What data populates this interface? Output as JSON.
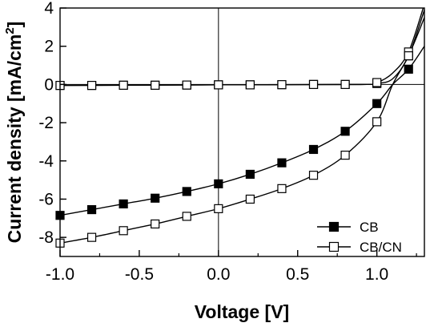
{
  "chart_data": {
    "type": "line",
    "xlabel": "Voltage [V]",
    "ylabel_main": "Current density [mA/cm",
    "ylabel_sup": "2",
    "ylabel_close": "]",
    "xlim": [
      -1.0,
      1.3
    ],
    "ylim": [
      -9,
      4
    ],
    "x_ticks": [
      -1.0,
      -0.5,
      0.0,
      0.5,
      1.0
    ],
    "x_tick_labels": [
      "-1.0",
      "-0.5",
      "0.0",
      "0.5",
      "1.0"
    ],
    "y_ticks": [
      -8,
      -6,
      -4,
      -2,
      0,
      2,
      4
    ],
    "y_tick_labels": [
      "-8",
      "-6",
      "-4",
      "-2",
      "0",
      "2",
      "4"
    ],
    "zero_lines": true,
    "grid": false,
    "legend_position": "bottom-right",
    "series": [
      {
        "name": "CB",
        "marker": "filled-square",
        "curve": [
          [
            -1.0,
            -6.85
          ],
          [
            -0.8,
            -6.55
          ],
          [
            -0.6,
            -6.25
          ],
          [
            -0.4,
            -5.95
          ],
          [
            -0.2,
            -5.6
          ],
          [
            0.0,
            -5.2
          ],
          [
            0.2,
            -4.7
          ],
          [
            0.4,
            -4.1
          ],
          [
            0.6,
            -3.4
          ],
          [
            0.8,
            -2.45
          ],
          [
            1.0,
            -1.0
          ],
          [
            1.1,
            0.0
          ],
          [
            1.2,
            0.8
          ],
          [
            1.3,
            2.0
          ]
        ],
        "x": [
          -1.0,
          -0.8,
          -0.6,
          -0.4,
          -0.2,
          0.0,
          0.2,
          0.4,
          0.6,
          0.8,
          1.0,
          1.2
        ],
        "values": [
          -6.85,
          -6.55,
          -6.25,
          -5.95,
          -5.6,
          -5.2,
          -4.7,
          -4.1,
          -3.4,
          -2.45,
          -1.0,
          0.8
        ],
        "dark_curve": [
          [
            -1.0,
            -0.05
          ],
          [
            0.0,
            -0.02
          ],
          [
            0.9,
            0.0
          ],
          [
            1.0,
            0.05
          ],
          [
            1.1,
            0.3
          ],
          [
            1.2,
            1.5
          ],
          [
            1.3,
            3.9
          ]
        ],
        "dark_x": [
          -1.0,
          -0.8,
          -0.6,
          -0.4,
          -0.2,
          0.0,
          0.2,
          0.4,
          0.6,
          0.8,
          1.0,
          1.2
        ],
        "dark_values": [
          -0.05,
          -0.05,
          -0.04,
          -0.04,
          -0.03,
          -0.02,
          -0.02,
          -0.01,
          0.0,
          0.0,
          0.05,
          1.5
        ]
      },
      {
        "name": "CB/CN",
        "marker": "open-square",
        "curve": [
          [
            -1.0,
            -8.3
          ],
          [
            -0.8,
            -8.0
          ],
          [
            -0.6,
            -7.65
          ],
          [
            -0.4,
            -7.3
          ],
          [
            -0.2,
            -6.9
          ],
          [
            0.0,
            -6.5
          ],
          [
            0.2,
            -6.0
          ],
          [
            0.4,
            -5.45
          ],
          [
            0.6,
            -4.75
          ],
          [
            0.8,
            -3.7
          ],
          [
            1.0,
            -1.95
          ],
          [
            1.1,
            0.0
          ],
          [
            1.2,
            1.5
          ],
          [
            1.3,
            3.5
          ]
        ],
        "x": [
          -1.0,
          -0.8,
          -0.6,
          -0.4,
          -0.2,
          0.0,
          0.2,
          0.4,
          0.6,
          0.8,
          1.0,
          1.2
        ],
        "values": [
          -8.3,
          -8.0,
          -7.65,
          -7.3,
          -6.9,
          -6.5,
          -6.0,
          -5.45,
          -4.75,
          -3.7,
          -1.95,
          1.5
        ],
        "dark_curve": [
          [
            -1.0,
            -0.05
          ],
          [
            0.0,
            -0.02
          ],
          [
            0.9,
            0.0
          ],
          [
            1.0,
            0.1
          ],
          [
            1.1,
            0.6
          ],
          [
            1.2,
            1.7
          ],
          [
            1.3,
            4.2
          ]
        ],
        "dark_x": [
          -1.0,
          -0.8,
          -0.6,
          -0.4,
          -0.2,
          0.0,
          0.2,
          0.4,
          0.6,
          0.8,
          1.0,
          1.2
        ],
        "dark_values": [
          -0.05,
          -0.05,
          -0.04,
          -0.04,
          -0.03,
          -0.02,
          -0.02,
          -0.01,
          0.0,
          0.0,
          0.1,
          1.7
        ]
      }
    ]
  }
}
